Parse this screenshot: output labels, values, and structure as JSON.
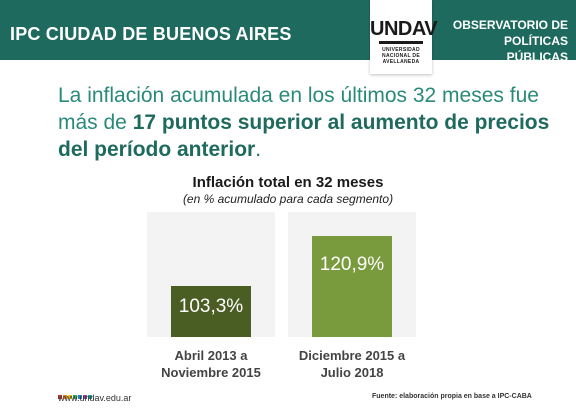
{
  "header": {
    "title": "IPC CIUDAD DE BUENOS AIRES",
    "observatorio_line1": "OBSERVATORIO DE",
    "observatorio_line2": "POLÍTICAS PÚBLICAS"
  },
  "logo": {
    "mark": "UNDAV",
    "line1": "UNIVERSIDAD",
    "line2": "NACIONAL DE",
    "line3": "AVELLANEDA"
  },
  "headline": {
    "part1": "La inflación acumulada en los últimos 32 meses fue más de ",
    "bold1": "17 puntos superior al aumento de precios del período anterior",
    "end": "."
  },
  "chart_data": {
    "type": "bar",
    "title": "Inflación total en 32 meses",
    "subtitle": "(en % acumulado para cada segmento)",
    "categories": [
      "Abril 2013 a Noviembre 2015",
      "Diciembre 2015 a Julio 2018"
    ],
    "category_lines": [
      [
        "Abril 2013 a",
        "Noviembre 2015"
      ],
      [
        "Diciembre 2015 a",
        "Julio 2018"
      ]
    ],
    "values": [
      103.3,
      120.9
    ],
    "value_labels": [
      "103,3%",
      "120,9%"
    ],
    "colors": [
      "#4a5e24",
      "#7a9a3e"
    ],
    "ylim": [
      85,
      125
    ]
  },
  "footer": {
    "url": "www.undav.edu.ar",
    "source": "Fuente: elaboración propia en base a IPC-CABA",
    "dot_colors": [
      "#c0392b",
      "#e67e22",
      "#f1c40f",
      "#27ae60",
      "#2980b9",
      "#8e44ad",
      "#16a085"
    ]
  }
}
